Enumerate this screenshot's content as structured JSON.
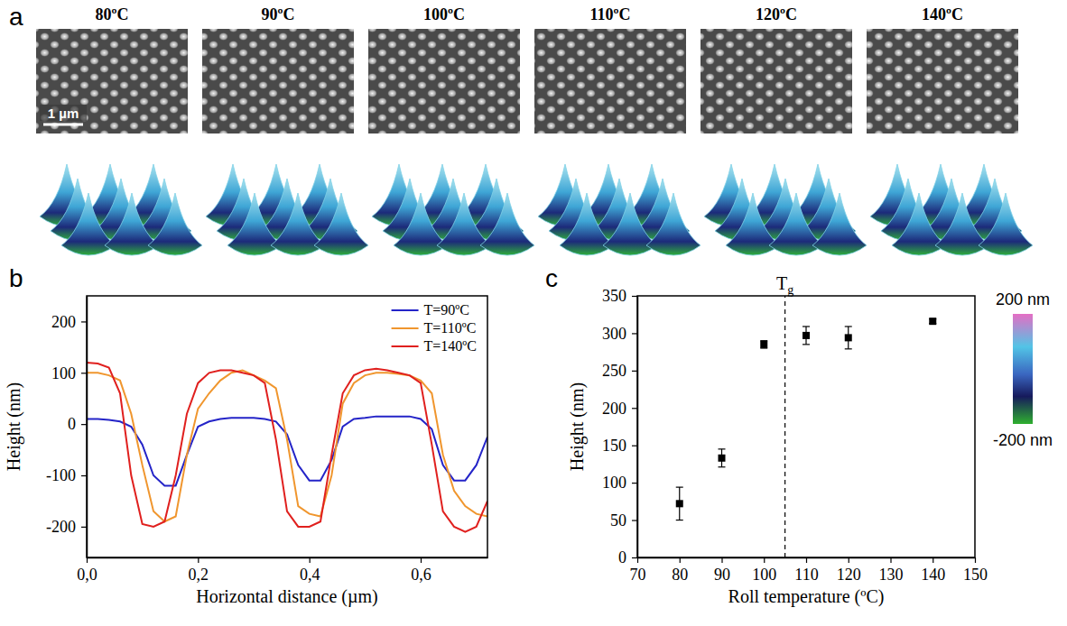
{
  "panel_a": {
    "letter": "a",
    "titles": [
      "80ºC",
      "90ºC",
      "100ºC",
      "110ºC",
      "120ºC",
      "140ºC"
    ],
    "scale_bar_label": "1 µm",
    "color_bar": {
      "range": [
        -200,
        200
      ],
      "ticks": [
        {
          "value": 200,
          "label": "200 nm"
        },
        {
          "value": -200,
          "label": "-200 nm"
        }
      ]
    }
  },
  "chart_data": [
    {
      "type": "line",
      "letter": "b",
      "x_label": "Horizontal distance (µm)",
      "y_label": "Height (nm)",
      "x": [
        0,
        0.02,
        0.04,
        0.06,
        0.08,
        0.1,
        0.12,
        0.14,
        0.16,
        0.18,
        0.2,
        0.22,
        0.24,
        0.26,
        0.28,
        0.3,
        0.32,
        0.34,
        0.36,
        0.38,
        0.4,
        0.42,
        0.44,
        0.46,
        0.48,
        0.5,
        0.52,
        0.54,
        0.56,
        0.58,
        0.6,
        0.62,
        0.64,
        0.66,
        0.68,
        0.7,
        0.72
      ],
      "series": [
        {
          "name": "T=90ºC",
          "color": "#2424c8",
          "values": [
            10,
            10,
            8,
            5,
            -5,
            -40,
            -100,
            -120,
            -120,
            -60,
            -5,
            5,
            10,
            12,
            12,
            12,
            10,
            5,
            -20,
            -80,
            -110,
            -110,
            -70,
            -5,
            10,
            12,
            15,
            15,
            15,
            15,
            10,
            -10,
            -80,
            -110,
            -110,
            -80,
            -25
          ]
        },
        {
          "name": "T=110ºC",
          "color": "#f0962e",
          "values": [
            100,
            100,
            95,
            85,
            20,
            -80,
            -170,
            -190,
            -180,
            -60,
            30,
            60,
            85,
            100,
            105,
            95,
            85,
            70,
            -30,
            -160,
            -175,
            -180,
            -100,
            40,
            80,
            95,
            100,
            100,
            98,
            95,
            85,
            60,
            -60,
            -130,
            -160,
            -175,
            -180
          ]
        },
        {
          "name": "T=140ºC",
          "color": "#e0201e",
          "values": [
            120,
            118,
            110,
            60,
            -100,
            -195,
            -200,
            -190,
            -100,
            20,
            80,
            100,
            105,
            105,
            100,
            95,
            80,
            -30,
            -170,
            -200,
            -200,
            -190,
            -60,
            60,
            95,
            105,
            108,
            105,
            100,
            95,
            80,
            -40,
            -170,
            -200,
            -210,
            -200,
            -150
          ]
        }
      ],
      "xlim": [
        0,
        0.72
      ],
      "xticks": [
        {
          "value": 0,
          "label": "0,0"
        },
        {
          "value": 0.2,
          "label": "0,2"
        },
        {
          "value": 0.4,
          "label": "0,4"
        },
        {
          "value": 0.6,
          "label": "0,6"
        }
      ],
      "ylim": [
        -260,
        250
      ],
      "yticks": [
        -200,
        -100,
        0,
        100,
        200
      ],
      "grid": false,
      "legend": "upper right"
    },
    {
      "type": "scatter",
      "letter": "c",
      "x_label": "Roll temperature (ºC)",
      "y_label": "Height (nm)",
      "x": [
        80,
        90,
        100,
        110,
        120,
        140
      ],
      "values": [
        72,
        133,
        285,
        297,
        294,
        316
      ],
      "errors": [
        22,
        12,
        5,
        12,
        15,
        3
      ],
      "color": "#000000",
      "marker": "square",
      "xlim": [
        70,
        150
      ],
      "xticks": [
        70,
        80,
        90,
        100,
        110,
        120,
        130,
        140,
        150
      ],
      "ylim": [
        0,
        350
      ],
      "yticks": [
        0,
        50,
        100,
        150,
        200,
        250,
        300,
        350
      ],
      "grid": false,
      "annotations": [
        {
          "x": 105,
          "text": "T",
          "subscript": "g",
          "line_style": "dashed"
        }
      ]
    }
  ]
}
